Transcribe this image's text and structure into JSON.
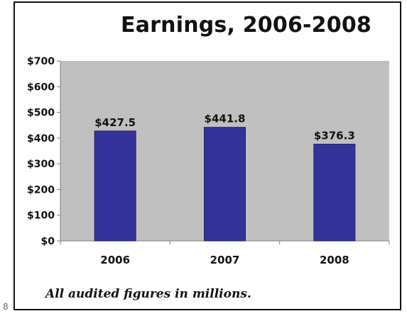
{
  "corner_mark": "8",
  "chart_data": {
    "type": "bar",
    "title": "Earnings, 2006-2008",
    "xlabel": "",
    "ylabel": "",
    "categories": [
      "2006",
      "2007",
      "2008"
    ],
    "values": [
      427.5,
      441.8,
      376.3
    ],
    "data_labels": [
      "$427.5",
      "$441.8",
      "$376.3"
    ],
    "ylim": [
      0,
      700
    ],
    "y_ticks": [
      0,
      100,
      200,
      300,
      400,
      500,
      600,
      700
    ],
    "y_tick_labels": [
      "$0",
      "$100",
      "$200",
      "$300",
      "$400",
      "$500",
      "$600",
      "$700"
    ],
    "grid": false,
    "legend": "none",
    "note": "All audited figures in millions.",
    "colors": {
      "bar": "#333399",
      "plot_background": "#c0c0c0",
      "text": "#111111"
    }
  }
}
